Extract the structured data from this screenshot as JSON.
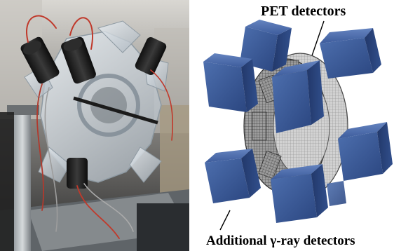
{
  "figure": {
    "labels": {
      "pet_detectors": "PET detectors",
      "additional_detectors": "Additional γ-ray detectors"
    },
    "panels": {
      "left": "photograph-of-prototype",
      "right": "schematic-rendering"
    },
    "colors": {
      "detector_blue": "#3b5b9a",
      "detector_blue_dark": "#243d70",
      "pet_ring_gray": "#8a8a8a",
      "acrylic": "#d8dee4",
      "background_dark": "#1f2326"
    }
  }
}
